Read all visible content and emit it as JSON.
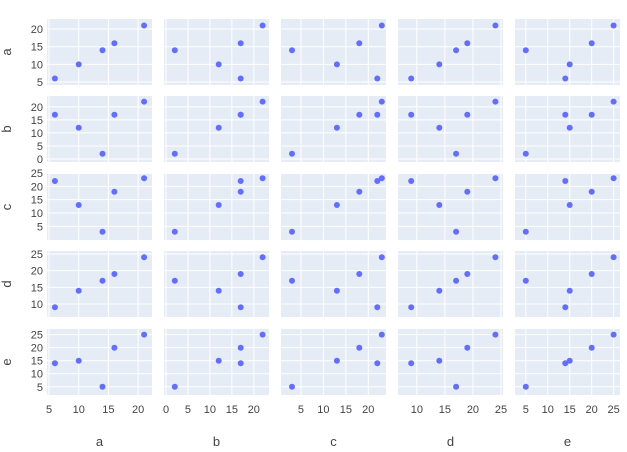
{
  "chart_data": {
    "type": "scatter",
    "kind": "scatter-matrix",
    "variables": [
      "a",
      "b",
      "c",
      "d",
      "e"
    ],
    "columns": {
      "a": [
        21,
        16,
        14,
        10,
        6
      ],
      "b": [
        22,
        17,
        2,
        12,
        17
      ],
      "c": [
        23,
        18,
        3,
        13,
        22
      ],
      "d": [
        24,
        19,
        17,
        14,
        9
      ],
      "e": [
        25,
        20,
        5,
        15,
        14
      ]
    },
    "axes": {
      "a": {
        "range": [
          5,
          22
        ],
        "ticks": [
          5,
          10,
          15,
          20
        ]
      },
      "b": {
        "range": [
          0,
          23
        ],
        "ticks": [
          0,
          5,
          10,
          15,
          20
        ]
      },
      "c": {
        "range": [
          1,
          23.5
        ],
        "ticks": [
          5,
          10,
          15,
          20,
          25
        ]
      },
      "d": {
        "range": [
          7,
          25
        ],
        "ticks": [
          10,
          15,
          20,
          25
        ]
      },
      "e": {
        "range": [
          3,
          26
        ],
        "ticks": [
          5,
          10,
          15,
          20,
          25
        ]
      }
    },
    "grid": true,
    "colors": {
      "marker": "#636efa",
      "panel": "#e5ecf6",
      "gridline": "#ffffff",
      "text": "#444444"
    }
  }
}
